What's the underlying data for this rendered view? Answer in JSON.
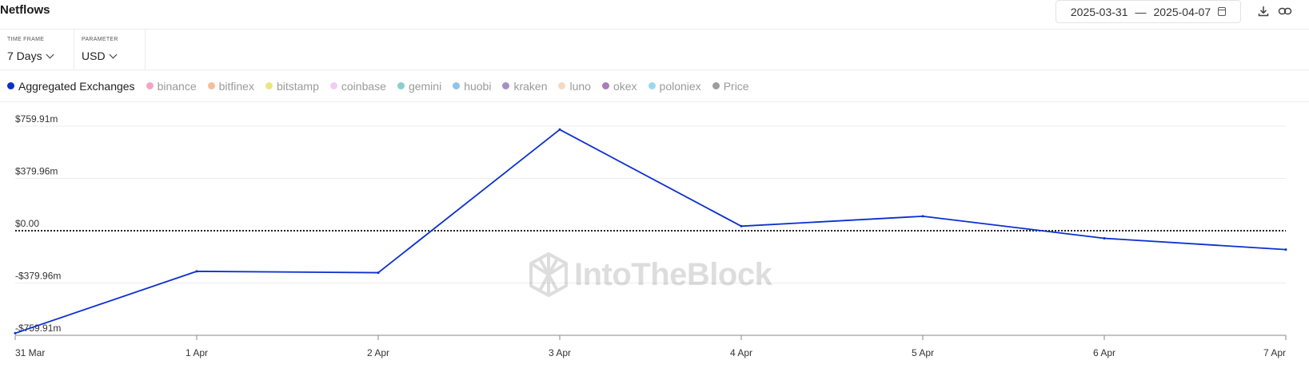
{
  "header": {
    "title": "Netflows",
    "date_from": "2025-03-31",
    "date_sep": "—",
    "date_to": "2025-04-07",
    "icons": [
      "calendar-icon",
      "download-icon",
      "link-icon"
    ]
  },
  "controls": {
    "time_frame": {
      "label": "TIME FRAME",
      "value": "7 Days"
    },
    "parameter": {
      "label": "PARAMETER",
      "value": "USD"
    }
  },
  "legend": [
    {
      "name": "Aggregated Exchanges",
      "color": "#0b2fce",
      "active": true
    },
    {
      "name": "binance",
      "color": "#f4a3c6",
      "active": false
    },
    {
      "name": "bitfinex",
      "color": "#f6bd98",
      "active": false
    },
    {
      "name": "bitstamp",
      "color": "#ece57f",
      "active": false
    },
    {
      "name": "coinbase",
      "color": "#f0cdf3",
      "active": false
    },
    {
      "name": "gemini",
      "color": "#88cfcf",
      "active": false
    },
    {
      "name": "huobi",
      "color": "#8dc3ec",
      "active": false
    },
    {
      "name": "kraken",
      "color": "#a58fc4",
      "active": false
    },
    {
      "name": "luno",
      "color": "#f6d9c2",
      "active": false
    },
    {
      "name": "okex",
      "color": "#a77eb6",
      "active": false
    },
    {
      "name": "poloniex",
      "color": "#9bd7f3",
      "active": false
    },
    {
      "name": "Price",
      "color": "#9e9e9e",
      "active": false
    }
  ],
  "chart_data": {
    "type": "line",
    "categories": [
      "31 Mar",
      "1 Apr",
      "2 Apr",
      "3 Apr",
      "4 Apr",
      "5 Apr",
      "6 Apr",
      "7 Apr"
    ],
    "series": [
      {
        "name": "Aggregated Exchanges",
        "values": [
          -745,
          -295,
          -305,
          735,
          33,
          105,
          -55,
          -137
        ],
        "color": "#0b2fce"
      }
    ],
    "ytick_labels": [
      "$759.91m",
      "$379.96m",
      "$0.00",
      "-$379.96m",
      "-$759.91m"
    ],
    "ytick_values": [
      759.91,
      379.96,
      0,
      -379.96,
      -759.91
    ],
    "ylim": [
      -759.91,
      759.91
    ],
    "unit": "USD millions",
    "zero_line": "dotted",
    "grid": true,
    "legend_position": "top",
    "watermark": "IntoTheBlock"
  }
}
